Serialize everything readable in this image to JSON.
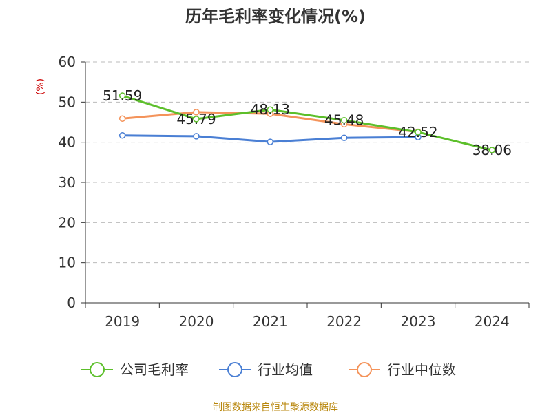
{
  "source_note": "制图数据来自恒生聚源数据库",
  "colors": {
    "source": "#b8860b",
    "unit": "#cc0000",
    "axis": "#333333",
    "grid": "#bbbbbb"
  },
  "chart_data": {
    "type": "line",
    "title": "历年毛利率变化情况(%)",
    "ylabel": "(%)",
    "xlabel": "",
    "categories": [
      "2019",
      "2020",
      "2021",
      "2022",
      "2023",
      "2024"
    ],
    "ylim": [
      0,
      60
    ],
    "yticks": [
      0,
      10,
      20,
      30,
      40,
      50,
      60
    ],
    "grid": true,
    "legend_position": "bottom",
    "series": [
      {
        "name": "公司毛利率",
        "color": "#5cbf2a",
        "values": [
          51.59,
          45.79,
          48.13,
          45.48,
          42.52,
          38.06
        ],
        "labels": [
          "51.59",
          "45.79",
          "48.13",
          "45.48",
          "42.52",
          "38.06"
        ]
      },
      {
        "name": "行业均值",
        "color": "#4a7fd4",
        "values": [
          41.7,
          41.5,
          40.1,
          41.1,
          41.3,
          null
        ]
      },
      {
        "name": "行业中位数",
        "color": "#f4935a",
        "values": [
          45.9,
          47.5,
          47.1,
          44.5,
          42.6,
          null
        ]
      }
    ]
  }
}
